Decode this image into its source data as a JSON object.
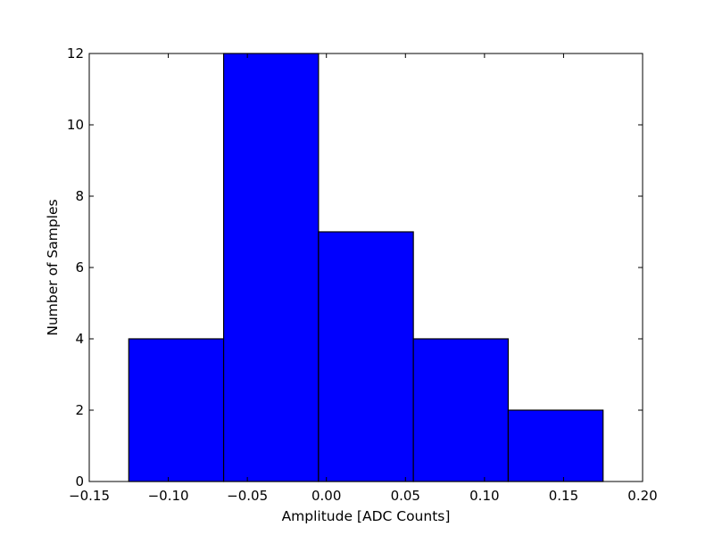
{
  "chart_data": {
    "type": "bar",
    "subtype": "histogram",
    "title": "",
    "xlabel": "Amplitude [ADC Counts]",
    "ylabel": "Number of Samples",
    "xlim": [
      -0.15,
      0.2
    ],
    "ylim": [
      0,
      12
    ],
    "xticks": [
      -0.15,
      -0.1,
      -0.05,
      0.0,
      0.05,
      0.1,
      0.15,
      0.2
    ],
    "xtick_labels": [
      "−0.15",
      "−0.10",
      "−0.05",
      "0.00",
      "0.05",
      "0.10",
      "0.15",
      "0.20"
    ],
    "yticks": [
      0,
      2,
      4,
      6,
      8,
      10,
      12
    ],
    "ytick_labels": [
      "0",
      "2",
      "4",
      "6",
      "8",
      "10",
      "12"
    ],
    "bins": [
      {
        "x0": -0.125,
        "x1": -0.065,
        "count": 4
      },
      {
        "x0": -0.065,
        "x1": -0.005,
        "count": 12
      },
      {
        "x0": -0.005,
        "x1": 0.055,
        "count": 7
      },
      {
        "x0": 0.055,
        "x1": 0.115,
        "count": 4
      },
      {
        "x0": 0.115,
        "x1": 0.175,
        "count": 2
      }
    ],
    "bar_color": "#0000ff",
    "edge_color": "#000000",
    "grid": false,
    "legend": "none"
  }
}
